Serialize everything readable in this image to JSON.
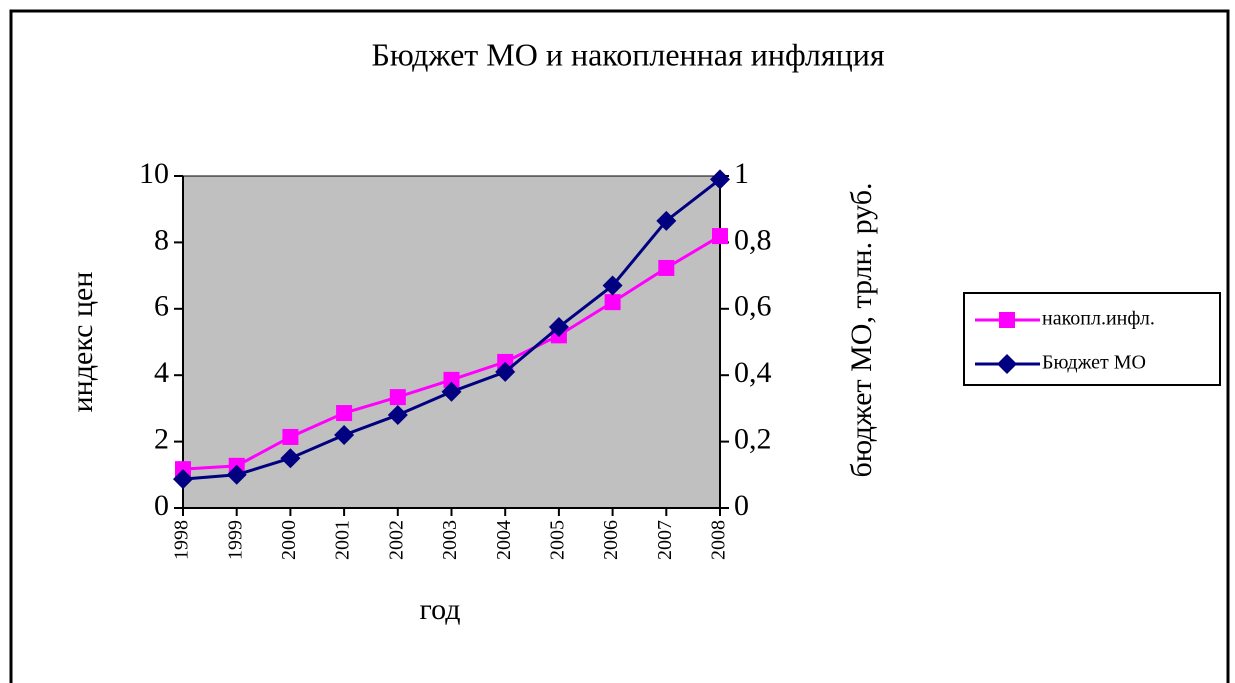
{
  "chart_data": {
    "type": "line",
    "title": "Бюджет МО и накопленная инфляция",
    "xlabel": "год",
    "ylabel": "индекс цен",
    "y2label": "бюджет МО, трлн. руб.",
    "categories": [
      "1998",
      "1999",
      "2000",
      "2001",
      "2002",
      "2003",
      "2004",
      "2005",
      "2006",
      "2007",
      "2008"
    ],
    "series": [
      {
        "name": "накопл.инфл.",
        "color": "#ff00ff",
        "marker": "square",
        "axis": "y",
        "values": [
          1.17,
          1.27,
          2.14,
          2.86,
          3.34,
          3.86,
          4.4,
          5.2,
          6.2,
          7.23,
          8.19
        ]
      },
      {
        "name": "Бюджет МО",
        "color": "#000080",
        "marker": "diamond",
        "axis": "y2",
        "values": [
          0.087,
          0.1,
          0.15,
          0.22,
          0.28,
          0.35,
          0.41,
          0.545,
          0.67,
          0.865,
          0.99
        ]
      }
    ],
    "ylim": [
      0,
      10
    ],
    "yticks": [
      0,
      2,
      4,
      6,
      8,
      10
    ],
    "y2lim": [
      0,
      1
    ],
    "y2ticks": [
      0,
      {
        "value": 0.2,
        "label": "0,2"
      },
      {
        "value": 0.4,
        "label": "0,4"
      },
      {
        "value": 0.6,
        "label": "0,6"
      },
      {
        "value": 0.8,
        "label": "0,8"
      },
      1
    ],
    "plot_background": "#c0c0c0",
    "legend": "right"
  }
}
